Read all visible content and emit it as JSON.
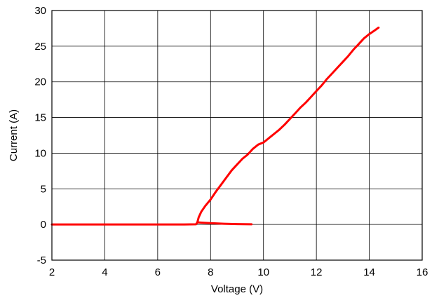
{
  "chart_data": {
    "type": "line",
    "title": "",
    "xlabel": "Voltage (V)",
    "ylabel": "Current (A)",
    "xlim": [
      2,
      16
    ],
    "ylim": [
      -5,
      30
    ],
    "x_ticks": [
      2,
      4,
      6,
      8,
      10,
      12,
      14,
      16
    ],
    "y_ticks": [
      -5,
      0,
      5,
      10,
      15,
      20,
      25,
      30
    ],
    "grid": true,
    "legend": "none",
    "series": [
      {
        "color": "#ff0000",
        "points": [
          [
            2.0,
            0.0
          ],
          [
            3.0,
            0.0
          ],
          [
            4.0,
            0.0
          ],
          [
            5.0,
            0.0
          ],
          [
            6.0,
            0.0
          ],
          [
            7.0,
            0.0
          ],
          [
            7.45,
            0.02
          ],
          [
            7.5,
            0.3
          ],
          [
            7.55,
            1.0
          ],
          [
            7.65,
            1.8
          ],
          [
            7.8,
            2.6
          ],
          [
            8.0,
            3.5
          ],
          [
            8.2,
            4.6
          ],
          [
            8.4,
            5.6
          ],
          [
            8.6,
            6.6
          ],
          [
            8.8,
            7.6
          ],
          [
            9.0,
            8.4
          ],
          [
            9.2,
            9.2
          ],
          [
            9.4,
            9.8
          ],
          [
            9.6,
            10.6
          ],
          [
            9.8,
            11.2
          ],
          [
            10.0,
            11.5
          ],
          [
            10.2,
            12.1
          ],
          [
            10.4,
            12.7
          ],
          [
            10.6,
            13.3
          ],
          [
            10.8,
            14.0
          ],
          [
            11.0,
            14.8
          ],
          [
            11.2,
            15.6
          ],
          [
            11.4,
            16.4
          ],
          [
            11.6,
            17.1
          ],
          [
            11.8,
            17.9
          ],
          [
            12.0,
            18.7
          ],
          [
            12.2,
            19.5
          ],
          [
            12.4,
            20.4
          ],
          [
            12.6,
            21.2
          ],
          [
            12.8,
            22.0
          ],
          [
            13.0,
            22.8
          ],
          [
            13.2,
            23.6
          ],
          [
            13.4,
            24.5
          ],
          [
            13.6,
            25.3
          ],
          [
            13.8,
            26.1
          ],
          [
            14.0,
            26.7
          ],
          [
            14.2,
            27.2
          ],
          [
            14.35,
            27.6
          ]
        ]
      },
      {
        "color": "#ff0000",
        "points": [
          [
            7.5,
            0.3
          ],
          [
            7.7,
            0.25
          ],
          [
            8.0,
            0.18
          ],
          [
            8.5,
            0.1
          ],
          [
            9.0,
            0.05
          ],
          [
            9.55,
            0.02
          ]
        ]
      }
    ]
  }
}
